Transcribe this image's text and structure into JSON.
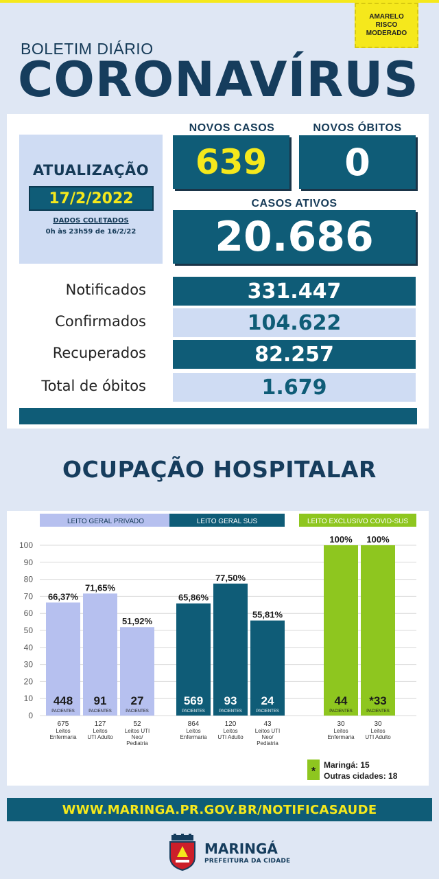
{
  "risk_badge": {
    "line1": "AMARELO",
    "line2": "RISCO",
    "line3": "MODERADO",
    "color": "#f5e81c"
  },
  "header": {
    "subtitle": "BOLETIM DIÁRIO",
    "title": "CORONAVÍRUS"
  },
  "update": {
    "label": "ATUALIZAÇÃO",
    "date": "17/2/2022",
    "note_title": "DADOS COLETADOS",
    "note_period": "0h às 23h59 de 16/2/22"
  },
  "new_cases": {
    "label": "NOVOS CASOS",
    "value": "639"
  },
  "new_deaths": {
    "label": "NOVOS ÓBITOS",
    "value": "0"
  },
  "active_cases": {
    "label": "CASOS ATIVOS",
    "value": "20.686"
  },
  "stats": [
    {
      "label": "Notificados",
      "value": "331.447"
    },
    {
      "label": "Confirmados",
      "value": "104.622"
    },
    {
      "label": "Recuperados",
      "value": "82.257"
    },
    {
      "label": "Total de óbitos",
      "value": "1.679"
    }
  ],
  "hospital": {
    "title": "OCUPAÇÃO HOSPITALAR"
  },
  "chart_data": {
    "type": "bar",
    "yticks": [
      "100",
      "90",
      "80",
      "70",
      "60",
      "50",
      "40",
      "30",
      "20",
      "10",
      "0"
    ],
    "ylim": [
      0,
      100
    ],
    "patients_label": "PACIENTES",
    "groups": [
      {
        "name": "LEITO GERAL PRIVADO",
        "color": "#b6c0ef",
        "header_color": "#b6c0ef",
        "header_text_color": "#153a57",
        "value_text_color": "#1b1b1b",
        "bars": [
          {
            "value": 66.37,
            "label": "66,37%",
            "patients": "448",
            "beds": "675",
            "bed_type": [
              "Leitos",
              "Enfermaria"
            ]
          },
          {
            "value": 71.65,
            "label": "71,65%",
            "patients": "91",
            "beds": "127",
            "bed_type": [
              "Leitos",
              "UTI Adulto"
            ]
          },
          {
            "value": 51.92,
            "label": "51,92%",
            "patients": "27",
            "beds": "52",
            "bed_type": [
              "Leitos UTI",
              "Neo/",
              "Pediatria"
            ]
          }
        ]
      },
      {
        "name": "LEITO GERAL SUS",
        "color": "#0f5c77",
        "header_color": "#0f5c77",
        "header_text_color": "#ffffff",
        "value_text_color": "#ffffff",
        "bars": [
          {
            "value": 65.86,
            "label": "65,86%",
            "patients": "569",
            "beds": "864",
            "bed_type": [
              "Leitos",
              "Enfermaria"
            ]
          },
          {
            "value": 77.5,
            "label": "77,50%",
            "patients": "93",
            "beds": "120",
            "bed_type": [
              "Leitos",
              "UTI Adulto"
            ]
          },
          {
            "value": 55.81,
            "label": "55,81%",
            "patients": "24",
            "beds": "43",
            "bed_type": [
              "Leitos UTI",
              "Neo/",
              "Pediatria"
            ]
          }
        ]
      },
      {
        "name": "LEITO EXCLUSIVO COVID-SUS",
        "color": "#8ec61f",
        "header_color": "#8ec61f",
        "header_text_color": "#ffffff",
        "value_text_color": "#1b1b1b",
        "bars": [
          {
            "value": 100,
            "label": "100%",
            "patients": "44",
            "beds": "30",
            "bed_type": [
              "Leitos",
              "Enfermaria"
            ]
          },
          {
            "value": 100,
            "label": "100%",
            "patients": "*33",
            "beds": "30",
            "bed_type": [
              "Leitos",
              "UTI Adulto"
            ]
          }
        ]
      }
    ],
    "footnote": {
      "marker": "*",
      "line1": "Maringá: 15",
      "line2": "Outras cidades: 18"
    }
  },
  "footer": {
    "url": "WWW.MARINGA.PR.GOV.BR/NOTIFICASAUDE",
    "city": "MARINGÁ",
    "city_sub": "PREFEITURA DA CIDADE"
  },
  "colors": {
    "primary": "#0f5c77",
    "title": "#163d5d",
    "accent_yellow": "#f5e81c",
    "light_blue": "#cfdcf3"
  }
}
